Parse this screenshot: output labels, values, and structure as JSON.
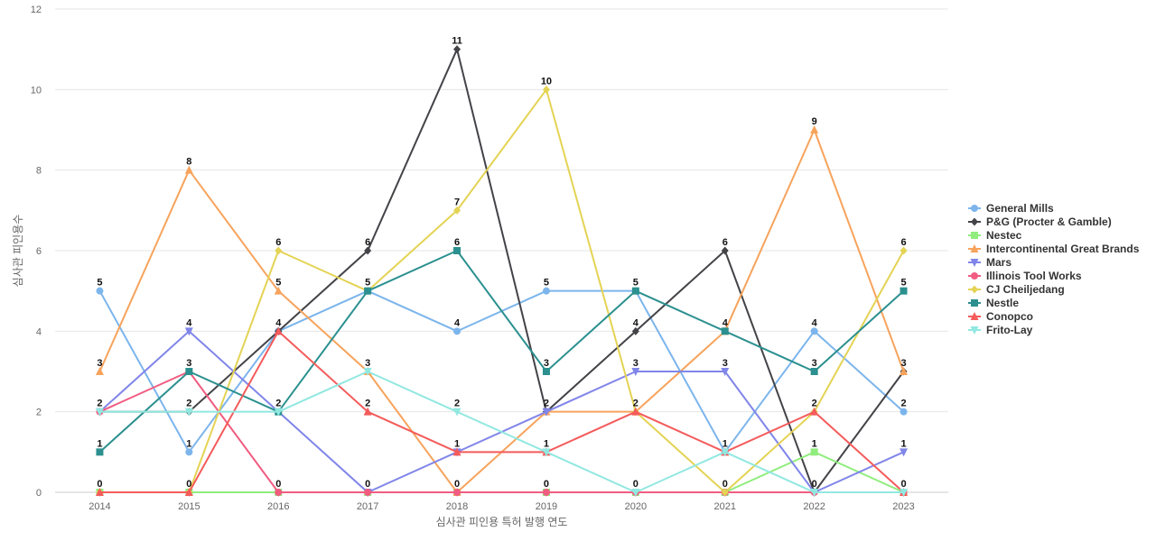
{
  "chart_data": {
    "type": "line",
    "title": "",
    "xlabel": "심사관 피인용 특허 발행 연도",
    "ylabel": "심사관 피인용수",
    "categories": [
      "2014",
      "2015",
      "2016",
      "2017",
      "2018",
      "2019",
      "2020",
      "2021",
      "2022",
      "2023"
    ],
    "ylim": [
      0,
      12
    ],
    "yticks": [
      0,
      2,
      4,
      6,
      8,
      10,
      12
    ],
    "grid": true,
    "legend_position": "right",
    "series": [
      {
        "name": "General Mills",
        "color": "#7cb5ec",
        "marker": "circle",
        "values": [
          5,
          1,
          4,
          5,
          4,
          5,
          5,
          1,
          4,
          2
        ]
      },
      {
        "name": "P&G (Procter & Gamble)",
        "color": "#434348",
        "marker": "diamond",
        "values": [
          2,
          2,
          4,
          6,
          11,
          2,
          4,
          6,
          0,
          3
        ]
      },
      {
        "name": "Nestec",
        "color": "#90ed7d",
        "marker": "square",
        "values": [
          0,
          0,
          0,
          0,
          0,
          0,
          0,
          0,
          1,
          0
        ]
      },
      {
        "name": "Intercontinental Great Brands",
        "color": "#f7a35c",
        "marker": "triangle",
        "values": [
          3,
          8,
          5,
          3,
          0,
          2,
          2,
          4,
          9,
          3
        ]
      },
      {
        "name": "Mars",
        "color": "#8085e9",
        "marker": "triangle-down",
        "values": [
          2,
          4,
          2,
          0,
          1,
          2,
          3,
          3,
          0,
          1
        ]
      },
      {
        "name": "Illinois Tool Works",
        "color": "#f15c80",
        "marker": "circle",
        "values": [
          2,
          3,
          0,
          0,
          0,
          0,
          0,
          0,
          0,
          0
        ]
      },
      {
        "name": "CJ Cheiljedang",
        "color": "#e4d354",
        "marker": "diamond",
        "values": [
          0,
          0,
          6,
          5,
          7,
          10,
          2,
          0,
          2,
          6
        ]
      },
      {
        "name": "Nestle",
        "color": "#2b908f",
        "marker": "square",
        "values": [
          1,
          3,
          2,
          5,
          6,
          3,
          5,
          4,
          3,
          5
        ]
      },
      {
        "name": "Conopco",
        "color": "#f45b5b",
        "marker": "triangle",
        "values": [
          0,
          0,
          4,
          2,
          1,
          1,
          2,
          1,
          2,
          0
        ]
      },
      {
        "name": "Frito-Lay",
        "color": "#91e8e1",
        "marker": "triangle-down",
        "values": [
          2,
          2,
          2,
          3,
          2,
          1,
          0,
          1,
          0,
          0
        ]
      }
    ],
    "data_labels": [
      {
        "category": "2014",
        "values": [
          5,
          3,
          2,
          1,
          0
        ]
      },
      {
        "category": "2015",
        "values": [
          8,
          4,
          3,
          2,
          1,
          0
        ]
      },
      {
        "category": "2016",
        "values": [
          6,
          5,
          4,
          2,
          0
        ]
      },
      {
        "category": "2017",
        "values": [
          6,
          5,
          3,
          2,
          0
        ]
      },
      {
        "category": "2018",
        "values": [
          11,
          7,
          6,
          4,
          2,
          1,
          0
        ]
      },
      {
        "category": "2019",
        "values": [
          10,
          5,
          3,
          2,
          1,
          0
        ]
      },
      {
        "category": "2020",
        "values": [
          5,
          4,
          3,
          2,
          0
        ]
      },
      {
        "category": "2021",
        "values": [
          6,
          4,
          3,
          1,
          0
        ]
      },
      {
        "category": "2022",
        "values": [
          9,
          4,
          3,
          2,
          1,
          0
        ]
      },
      {
        "category": "2023",
        "values": [
          6,
          5,
          3,
          2,
          1,
          0
        ]
      }
    ]
  }
}
